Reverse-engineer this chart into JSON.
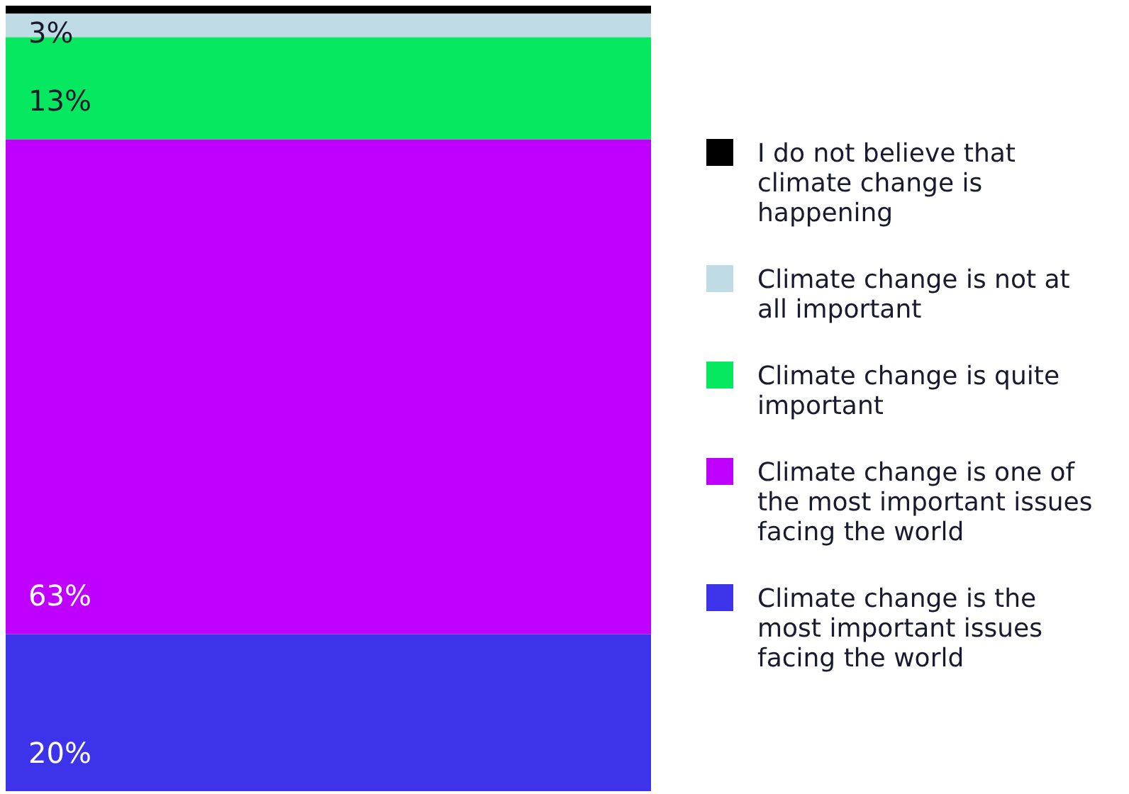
{
  "chart_data": {
    "type": "bar",
    "stacked": true,
    "categories": [
      null
    ],
    "legend": "right",
    "series": [
      {
        "name": "Climate change is the most important issues facing the world",
        "color": "#3d33ea",
        "values": [
          20
        ],
        "value_labels": [
          "20%"
        ]
      },
      {
        "name": "Climate change is one of the most important issues facing the world",
        "color": "#c000ff",
        "values": [
          63
        ],
        "value_labels": [
          "63%"
        ]
      },
      {
        "name": "Climate change is quite important",
        "color": "#05e85f",
        "values": [
          13
        ],
        "value_labels": [
          "13%"
        ]
      },
      {
        "name": "Climate change is not at all important",
        "color": "#bfdce5",
        "values": [
          3
        ],
        "value_labels": [
          "3%"
        ]
      },
      {
        "name": "I do not believe that climate change is happening",
        "color": "#000000",
        "values": [
          1
        ],
        "value_labels": [
          null
        ]
      }
    ]
  }
}
